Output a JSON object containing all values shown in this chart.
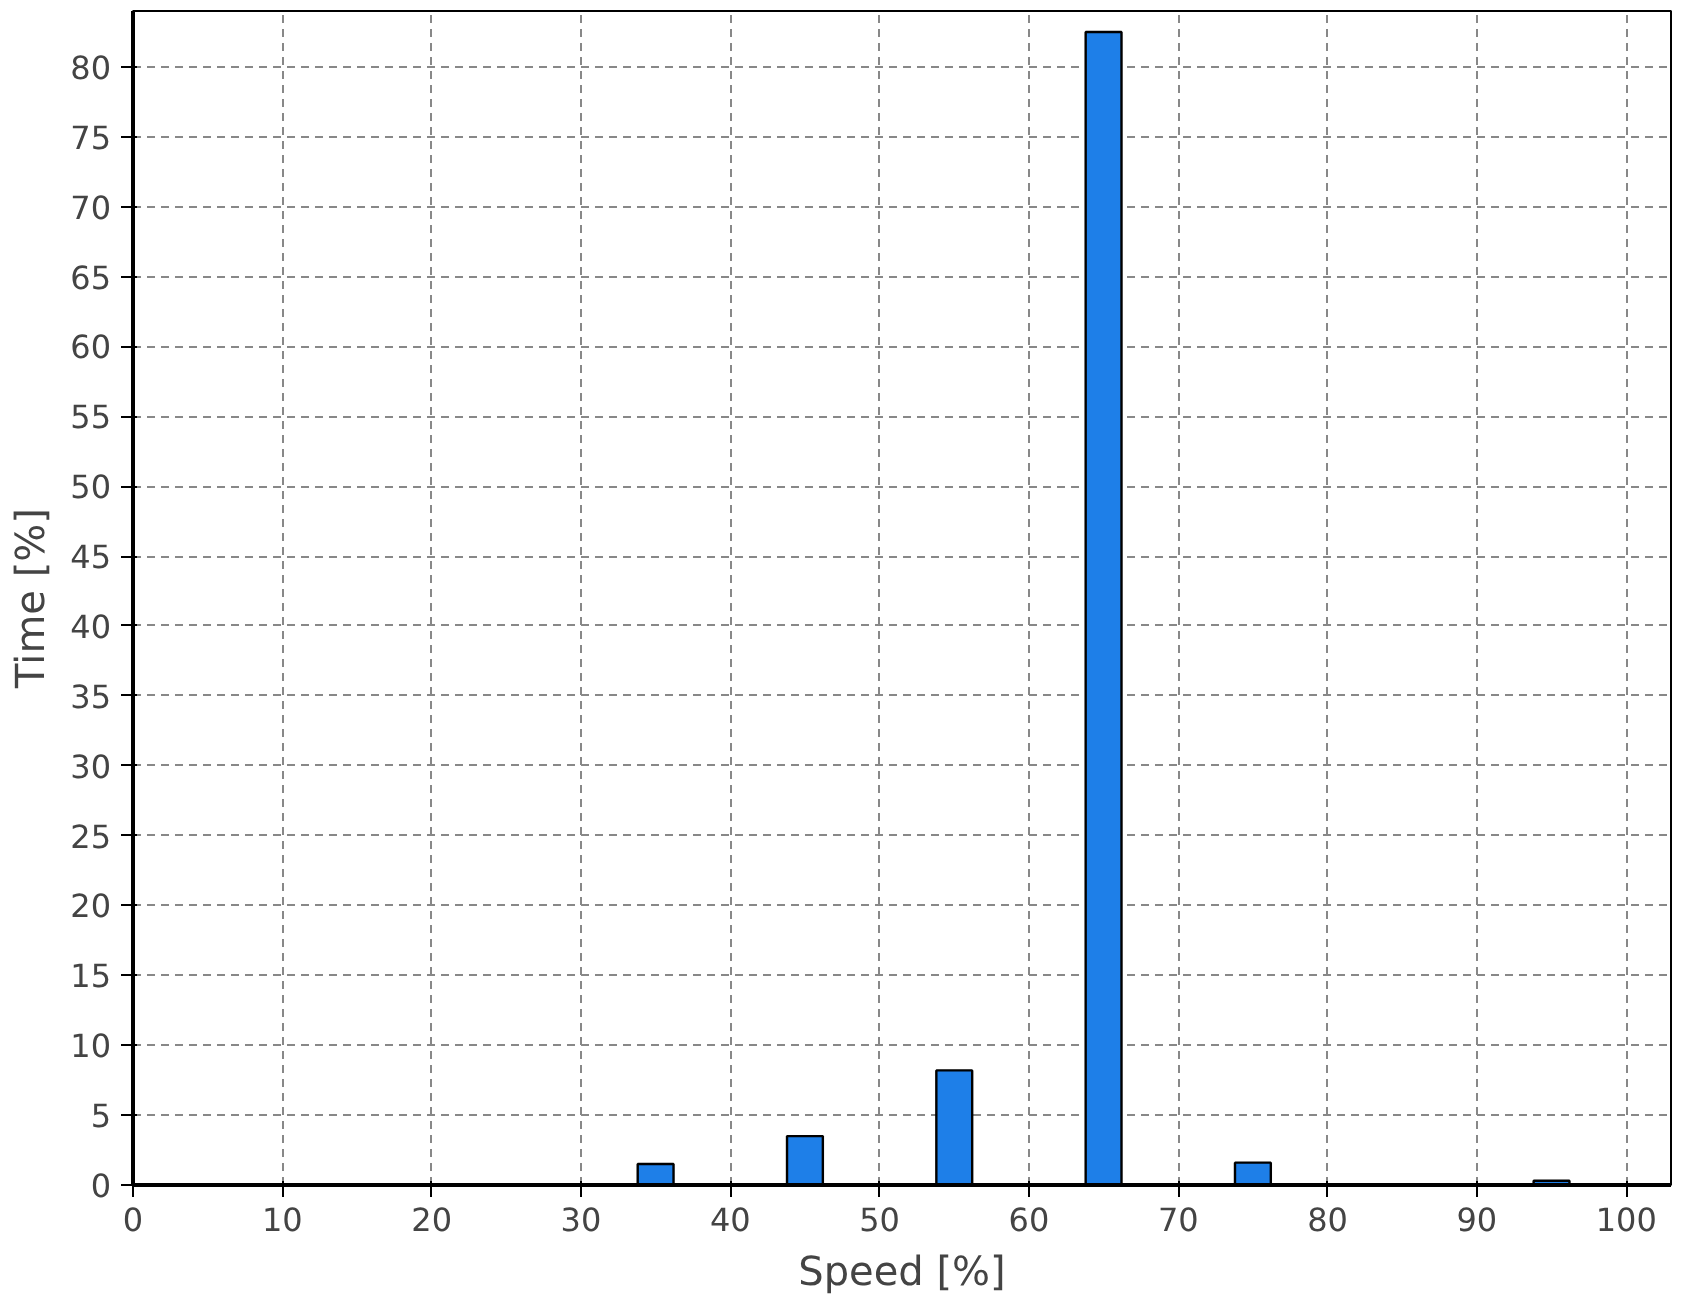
{
  "chart_data": {
    "type": "bar",
    "xlabel": "Speed [%]",
    "ylabel": "Time [%]",
    "x": [
      5,
      15,
      25,
      35,
      45,
      55,
      65,
      75,
      85,
      95
    ],
    "values": [
      0,
      0,
      0,
      1.5,
      3.5,
      8.2,
      82.5,
      1.6,
      0,
      0.3
    ],
    "color": "#1e7fe8",
    "xlim": [
      0,
      103
    ],
    "xticks": [
      0,
      10,
      20,
      30,
      40,
      50,
      60,
      70,
      80,
      90,
      100
    ],
    "ylim": [
      0,
      84
    ],
    "yticks": [
      0,
      5,
      10,
      15,
      20,
      25,
      30,
      35,
      40,
      45,
      50,
      55,
      60,
      65,
      70,
      75,
      80
    ],
    "grid": true
  }
}
